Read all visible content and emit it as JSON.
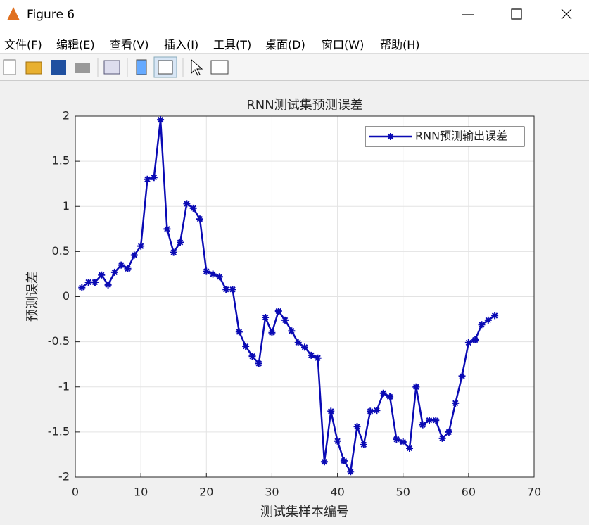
{
  "window": {
    "title": "Figure 6",
    "menu": [
      "文件(F)",
      "编辑(E)",
      "查看(V)",
      "插入(I)",
      "工具(T)",
      "桌面(D)",
      "窗口(W)",
      "帮助(H)"
    ]
  },
  "chart_data": {
    "type": "line",
    "title": "RNN测试集预测误差",
    "xlabel": "测试集样本编号",
    "ylabel": "预测误差",
    "x": [
      1,
      2,
      3,
      4,
      5,
      6,
      7,
      8,
      9,
      10,
      11,
      12,
      13,
      14,
      15,
      16,
      17,
      18,
      19,
      20,
      21,
      22,
      23,
      24,
      25,
      26,
      27,
      28,
      29,
      30,
      31,
      32,
      33,
      34,
      35,
      36,
      37,
      38,
      39,
      40,
      41,
      42,
      43,
      44,
      45,
      46,
      47,
      48,
      49,
      50,
      51,
      52,
      53,
      54,
      55,
      56,
      57,
      58,
      59,
      60,
      61,
      62,
      63,
      64
    ],
    "series": [
      {
        "name": "RNN预测输出误差",
        "color": "#0a0ab4",
        "values": [
          0.1,
          0.16,
          0.16,
          0.24,
          0.13,
          0.27,
          0.35,
          0.31,
          0.46,
          0.56,
          1.3,
          1.32,
          1.96,
          0.75,
          0.49,
          0.6,
          1.03,
          0.98,
          0.86,
          0.28,
          0.25,
          0.22,
          0.08,
          0.08,
          -0.39,
          -0.55,
          -0.66,
          -0.74,
          -0.23,
          -0.4,
          -0.16,
          -0.26,
          -0.38,
          -0.51,
          -0.56,
          -0.65,
          -0.68,
          -1.83,
          -1.27,
          -1.6,
          -1.82,
          -1.94,
          -1.44,
          -1.64,
          -1.27,
          -1.26,
          -1.07,
          -1.11,
          -1.58,
          -1.61,
          -1.68,
          -1.0,
          -1.42,
          -1.37,
          -1.37,
          -1.57,
          -1.5,
          -1.18,
          -0.88,
          -0.51,
          -0.48,
          -0.31,
          -0.26,
          -0.21
        ]
      }
    ],
    "xlim": [
      0,
      70
    ],
    "xticks": [
      0,
      10,
      20,
      30,
      40,
      50,
      60,
      70
    ],
    "ylim": [
      -2,
      2
    ],
    "yticks": [
      -2,
      -1.5,
      -1,
      -0.5,
      0,
      0.5,
      1,
      1.5,
      2
    ],
    "grid": true,
    "legend": "northeast"
  }
}
